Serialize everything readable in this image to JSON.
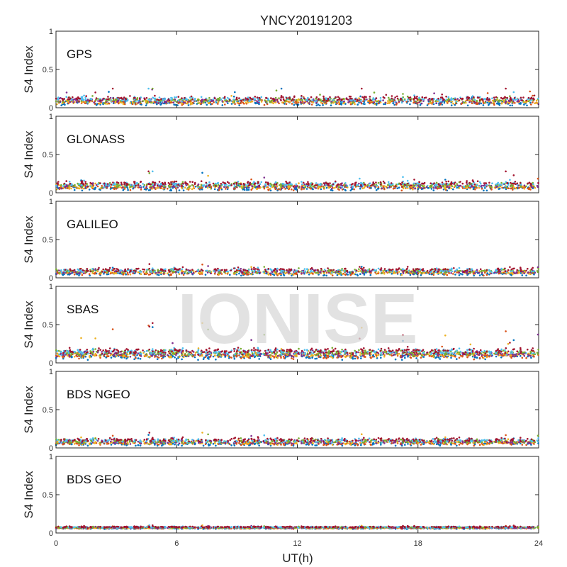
{
  "chart_data": {
    "type": "scatter",
    "title": "YNCY20191203",
    "xlabel": "UT(h)",
    "ylabel": "S4 Index",
    "xlim": [
      0,
      24
    ],
    "ylim": [
      0,
      1
    ],
    "x_ticks": [
      "0",
      "6",
      "12",
      "18",
      "24"
    ],
    "y_ticks": [
      "0",
      "0.5",
      "1"
    ],
    "grid": false,
    "watermark": "IONISE",
    "colors": [
      "#0072BD",
      "#D95319",
      "#EDB120",
      "#7E2F8E",
      "#77AC30",
      "#4DBEEE",
      "#A2142F"
    ],
    "panels": [
      {
        "label": "GPS",
        "baseline": 0.09,
        "spread": 0.03,
        "points_per_series": 220,
        "approx_y_range": [
          0.03,
          0.25
        ]
      },
      {
        "label": "GLONASS",
        "baseline": 0.09,
        "spread": 0.03,
        "points_per_series": 220,
        "approx_y_range": [
          0.03,
          0.28
        ]
      },
      {
        "label": "GALILEO",
        "baseline": 0.08,
        "spread": 0.025,
        "points_per_series": 200,
        "approx_y_range": [
          0.03,
          0.18
        ]
      },
      {
        "label": "SBAS",
        "baseline": 0.12,
        "spread": 0.035,
        "points_per_series": 260,
        "approx_y_range": [
          0.04,
          0.52
        ]
      },
      {
        "label": "BDS NGEO",
        "baseline": 0.08,
        "spread": 0.025,
        "points_per_series": 220,
        "approx_y_range": [
          0.03,
          0.2
        ]
      },
      {
        "label": "BDS GEO",
        "baseline": 0.07,
        "spread": 0.008,
        "points_per_series": 300,
        "approx_y_range": [
          0.05,
          0.1
        ]
      }
    ]
  }
}
